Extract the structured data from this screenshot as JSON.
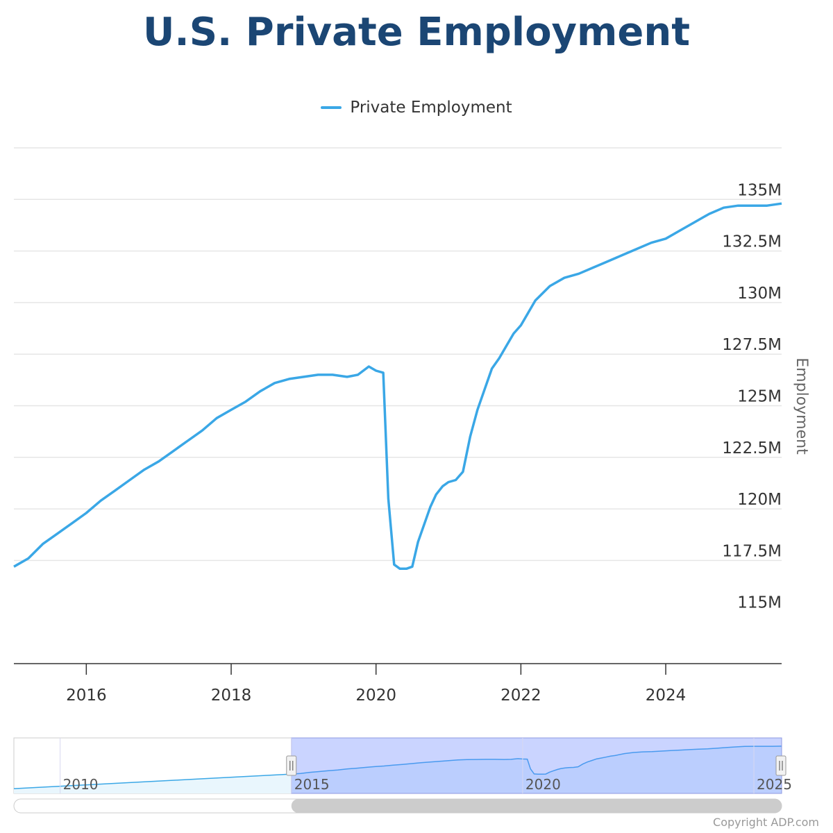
{
  "title": "U.S. Private Employment",
  "copyright": "Copyright ADP.com",
  "chart_data": {
    "type": "line",
    "title": "U.S. Private Employment",
    "ylabel": "Employment",
    "legend": "top-center",
    "grid": true,
    "xlim": [
      2015.0,
      2025.6
    ],
    "ylim": [
      112500000,
      137500000
    ],
    "x_ticks": [
      2016,
      2018,
      2020,
      2022,
      2024
    ],
    "y_ticks": [
      {
        "value": 115000000,
        "label": "115M"
      },
      {
        "value": 117500000,
        "label": "117.5M"
      },
      {
        "value": 120000000,
        "label": "120M"
      },
      {
        "value": 122500000,
        "label": "122.5M"
      },
      {
        "value": 125000000,
        "label": "125M"
      },
      {
        "value": 127500000,
        "label": "127.5M"
      },
      {
        "value": 130000000,
        "label": "130M"
      },
      {
        "value": 132500000,
        "label": "132.5M"
      },
      {
        "value": 135000000,
        "label": "135M"
      }
    ],
    "series": [
      {
        "name": "Private Employment",
        "color": "#3aa7e6",
        "x": [
          2015.0,
          2015.2,
          2015.4,
          2015.6,
          2015.8,
          2016.0,
          2016.2,
          2016.4,
          2016.6,
          2016.8,
          2017.0,
          2017.2,
          2017.4,
          2017.6,
          2017.8,
          2018.0,
          2018.2,
          2018.4,
          2018.6,
          2018.8,
          2019.0,
          2019.2,
          2019.4,
          2019.6,
          2019.75,
          2019.9,
          2020.0,
          2020.1,
          2020.17,
          2020.25,
          2020.33,
          2020.42,
          2020.5,
          2020.58,
          2020.67,
          2020.75,
          2020.83,
          2020.92,
          2021.0,
          2021.1,
          2021.2,
          2021.3,
          2021.4,
          2021.5,
          2021.6,
          2021.7,
          2021.8,
          2021.9,
          2022.0,
          2022.2,
          2022.4,
          2022.6,
          2022.8,
          2023.0,
          2023.2,
          2023.4,
          2023.6,
          2023.8,
          2024.0,
          2024.2,
          2024.4,
          2024.6,
          2024.8,
          2025.0,
          2025.2,
          2025.4,
          2025.6
        ],
        "values": [
          117200000,
          117600000,
          118300000,
          118800000,
          119300000,
          119800000,
          120400000,
          120900000,
          121400000,
          121900000,
          122300000,
          122800000,
          123300000,
          123800000,
          124400000,
          124800000,
          125200000,
          125700000,
          126100000,
          126300000,
          126400000,
          126500000,
          126500000,
          126400000,
          126500000,
          126900000,
          126700000,
          126600000,
          120500000,
          117300000,
          117100000,
          117100000,
          117200000,
          118400000,
          119300000,
          120100000,
          120700000,
          121100000,
          121300000,
          121400000,
          121800000,
          123500000,
          124800000,
          125800000,
          126800000,
          127300000,
          127900000,
          128500000,
          128900000,
          130100000,
          130800000,
          131200000,
          131400000,
          131700000,
          132000000,
          132300000,
          132600000,
          132900000,
          133100000,
          133500000,
          133900000,
          134300000,
          134600000,
          134700000,
          134700000,
          134700000,
          134800000
        ]
      }
    ],
    "navigator": {
      "xlim": [
        2009.0,
        2025.6
      ],
      "x_ticks": [
        2010,
        2015,
        2020,
        2025
      ],
      "selection": [
        2015.0,
        2025.6
      ]
    }
  }
}
